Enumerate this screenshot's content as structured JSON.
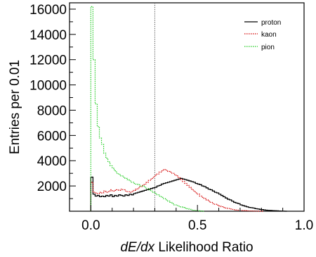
{
  "chart_data": {
    "type": "histogram",
    "xlabel_italic": "dE/dx",
    "xlabel_rest": "Likelihood Ratio",
    "ylabel": "Entries per 0.01",
    "xlim": [
      -0.1,
      1.0
    ],
    "ylim": [
      0,
      16500
    ],
    "x_ticks": [
      0.0,
      0.5,
      1.0
    ],
    "x_tick_labels": [
      "0.0",
      "0.5",
      "1.0"
    ],
    "y_ticks": [
      2000,
      4000,
      6000,
      8000,
      10000,
      12000,
      14000,
      16000
    ],
    "y_tick_labels": [
      "2000",
      "4000",
      "6000",
      "8000",
      "10000",
      "12000",
      "14000",
      "16000"
    ],
    "vertical_line_x": 0.3,
    "legend_position": "top-right",
    "series": [
      {
        "name": "proton",
        "color": "#000000",
        "line": "solid",
        "x": [
          0.0,
          0.01,
          0.02,
          0.03,
          0.04,
          0.05,
          0.06,
          0.07,
          0.08,
          0.09,
          0.1,
          0.11,
          0.12,
          0.13,
          0.14,
          0.15,
          0.16,
          0.17,
          0.18,
          0.19,
          0.2,
          0.21,
          0.22,
          0.23,
          0.24,
          0.25,
          0.26,
          0.27,
          0.28,
          0.29,
          0.3,
          0.31,
          0.32,
          0.33,
          0.34,
          0.35,
          0.36,
          0.37,
          0.38,
          0.39,
          0.4,
          0.41,
          0.42,
          0.43,
          0.44,
          0.45,
          0.46,
          0.47,
          0.48,
          0.49,
          0.5,
          0.51,
          0.52,
          0.53,
          0.54,
          0.55,
          0.56,
          0.57,
          0.58,
          0.59,
          0.6,
          0.61,
          0.62,
          0.63,
          0.64,
          0.65,
          0.66,
          0.67,
          0.68,
          0.69,
          0.7,
          0.71,
          0.72,
          0.73,
          0.74,
          0.75,
          0.76,
          0.77,
          0.78,
          0.79,
          0.8,
          0.81,
          0.82,
          0.83,
          0.84,
          0.85,
          0.86,
          0.87,
          0.88,
          0.89,
          0.9,
          0.91
        ],
        "values": [
          2700,
          1350,
          1200,
          1250,
          1150,
          1200,
          1150,
          1250,
          1200,
          1300,
          1150,
          1250,
          1200,
          1300,
          1250,
          1200,
          1300,
          1250,
          1350,
          1300,
          1400,
          1450,
          1500,
          1550,
          1600,
          1650,
          1700,
          1750,
          1800,
          1850,
          1900,
          2000,
          2050,
          2150,
          2200,
          2250,
          2300,
          2350,
          2400,
          2450,
          2500,
          2550,
          2600,
          2550,
          2500,
          2450,
          2400,
          2350,
          2300,
          2200,
          2150,
          2100,
          2000,
          1950,
          1850,
          1750,
          1700,
          1600,
          1500,
          1450,
          1350,
          1250,
          1150,
          1050,
          950,
          900,
          800,
          700,
          650,
          600,
          500,
          450,
          400,
          350,
          300,
          280,
          250,
          200,
          180,
          150,
          130,
          100,
          80,
          70,
          60,
          50,
          40,
          30,
          20,
          10,
          5,
          0
        ]
      },
      {
        "name": "kaon",
        "color": "#d40000",
        "line": "dotted",
        "x": [
          0.0,
          0.01,
          0.02,
          0.03,
          0.04,
          0.05,
          0.06,
          0.07,
          0.08,
          0.09,
          0.1,
          0.11,
          0.12,
          0.13,
          0.14,
          0.15,
          0.16,
          0.17,
          0.18,
          0.19,
          0.2,
          0.21,
          0.22,
          0.23,
          0.24,
          0.25,
          0.26,
          0.27,
          0.28,
          0.29,
          0.3,
          0.31,
          0.32,
          0.33,
          0.34,
          0.35,
          0.36,
          0.37,
          0.38,
          0.39,
          0.4,
          0.41,
          0.42,
          0.43,
          0.44,
          0.45,
          0.46,
          0.47,
          0.48,
          0.49,
          0.5,
          0.51,
          0.52,
          0.53,
          0.54,
          0.55,
          0.56,
          0.57,
          0.58,
          0.59,
          0.6,
          0.61,
          0.62,
          0.63,
          0.64,
          0.65,
          0.66,
          0.67,
          0.68,
          0.69,
          0.7,
          0.71,
          0.72,
          0.73,
          0.74,
          0.75,
          0.76,
          0.77,
          0.78,
          0.79,
          0.8
        ],
        "values": [
          2300,
          1500,
          1450,
          1400,
          1500,
          1450,
          1600,
          1500,
          1550,
          1700,
          1600,
          1650,
          1700,
          1650,
          1750,
          1700,
          1600,
          1550,
          1500,
          1550,
          1650,
          1750,
          1850,
          1950,
          2050,
          2150,
          2300,
          2450,
          2550,
          2700,
          2850,
          2950,
          3100,
          3200,
          3300,
          3250,
          3150,
          3100,
          3000,
          2900,
          2800,
          2650,
          2500,
          2350,
          2200,
          2050,
          1900,
          1750,
          1600,
          1450,
          1350,
          1200,
          1100,
          1000,
          900,
          800,
          700,
          600,
          550,
          480,
          420,
          360,
          300,
          260,
          220,
          180,
          150,
          120,
          100,
          80,
          60,
          50,
          40,
          30,
          25,
          20,
          15,
          10,
          8,
          5,
          0
        ]
      },
      {
        "name": "pion",
        "color": "#22cc22",
        "line": "dotted",
        "x": [
          0.0,
          0.01,
          0.02,
          0.03,
          0.04,
          0.05,
          0.06,
          0.07,
          0.08,
          0.09,
          0.1,
          0.11,
          0.12,
          0.13,
          0.14,
          0.15,
          0.16,
          0.17,
          0.18,
          0.19,
          0.2,
          0.21,
          0.22,
          0.23,
          0.24,
          0.25,
          0.26,
          0.27,
          0.28,
          0.29,
          0.3,
          0.31,
          0.32,
          0.33,
          0.34,
          0.35,
          0.36,
          0.37,
          0.38,
          0.39,
          0.4,
          0.41,
          0.42,
          0.43,
          0.44,
          0.45,
          0.46,
          0.47,
          0.48,
          0.49,
          0.5,
          0.51,
          0.52
        ],
        "values": [
          16200,
          12000,
          8500,
          6700,
          5800,
          5300,
          4600,
          4200,
          3900,
          3600,
          3400,
          3200,
          3000,
          2900,
          2800,
          2700,
          2600,
          2500,
          2400,
          2300,
          2200,
          2150,
          2100,
          2000,
          2000,
          1900,
          1800,
          1700,
          1600,
          1500,
          1400,
          1300,
          1200,
          1100,
          1000,
          900,
          800,
          700,
          600,
          500,
          450,
          400,
          350,
          300,
          250,
          200,
          150,
          100,
          80,
          60,
          40,
          20,
          0
        ]
      }
    ]
  }
}
